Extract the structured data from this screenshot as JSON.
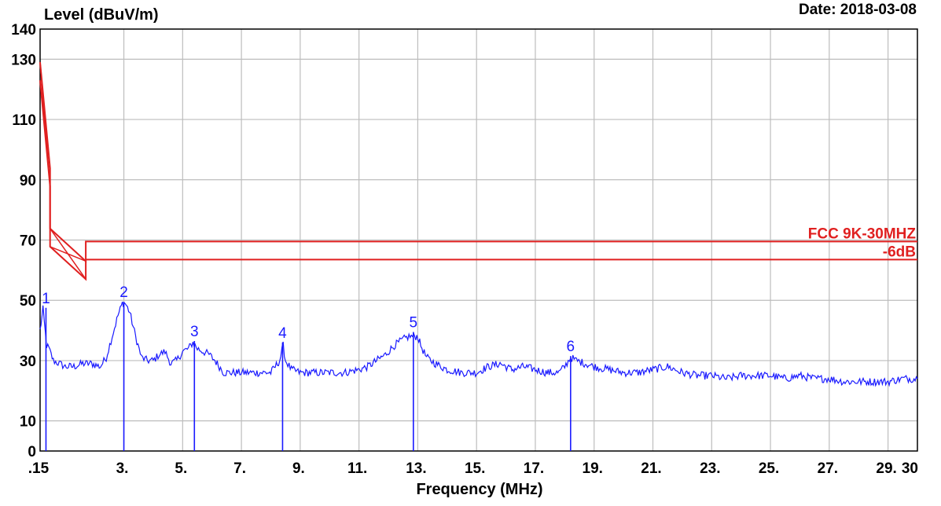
{
  "chart_data": {
    "type": "line",
    "title": "",
    "ylabel": "Level (dBuV/m)",
    "xlabel": "Frequency (MHz)",
    "date_label": "Date: 2018-03-08",
    "xlim": [
      0.15,
      30
    ],
    "ylim": [
      0,
      140
    ],
    "grid": true,
    "x_ticks": [
      {
        "value": 0.15,
        "label": ".15"
      },
      {
        "value": 3,
        "label": "3."
      },
      {
        "value": 5,
        "label": "5."
      },
      {
        "value": 7,
        "label": "7."
      },
      {
        "value": 9,
        "label": "9."
      },
      {
        "value": 11,
        "label": "11."
      },
      {
        "value": 13,
        "label": "13."
      },
      {
        "value": 15,
        "label": "15."
      },
      {
        "value": 17,
        "label": "17."
      },
      {
        "value": 19,
        "label": "19."
      },
      {
        "value": 21,
        "label": "21."
      },
      {
        "value": 23,
        "label": "23."
      },
      {
        "value": 25,
        "label": "25."
      },
      {
        "value": 27,
        "label": "27."
      },
      {
        "value": 29,
        "label": "29."
      },
      {
        "value": 30,
        "label": "30"
      }
    ],
    "y_ticks": [
      {
        "value": 0,
        "label": "0"
      },
      {
        "value": 10,
        "label": "10"
      },
      {
        "value": 30,
        "label": "30"
      },
      {
        "value": 50,
        "label": "50"
      },
      {
        "value": 70,
        "label": "70"
      },
      {
        "value": 90,
        "label": "90"
      },
      {
        "value": 110,
        "label": "110"
      },
      {
        "value": 130,
        "label": "130"
      },
      {
        "value": 140,
        "label": "140"
      }
    ],
    "colors": {
      "limit": "#e02020",
      "trace": "#1a1aff",
      "grid": "#bdbdbd",
      "axis": "#000000"
    },
    "limit_series": [
      {
        "name": "FCC 9K-30MHZ",
        "x": [
          0.15,
          0.49,
          0.49,
          1.705,
          1.705,
          30
        ],
        "y": [
          129,
          93.8,
          73.8,
          63,
          69.5,
          69.5
        ]
      },
      {
        "name": "-6dB",
        "x": [
          0.15,
          0.49,
          0.49,
          1.705,
          1.705,
          30
        ],
        "y": [
          123,
          87.8,
          67.8,
          57,
          63.5,
          63.5
        ]
      }
    ],
    "series": [
      {
        "x": [
          0.15,
          0.25,
          0.37,
          0.45,
          0.6,
          0.8,
          1.0,
          1.3,
          1.6,
          1.9,
          2.2,
          2.4,
          2.6,
          2.8,
          2.95,
          3.05,
          3.2,
          3.4,
          3.6,
          3.8,
          4.0,
          4.2,
          4.4,
          4.6,
          4.8,
          5.0,
          5.2,
          5.35,
          5.5,
          5.7,
          5.9,
          6.1,
          6.4,
          6.8,
          7.2,
          7.6,
          8.0,
          8.3,
          8.42,
          8.5,
          8.7,
          9.0,
          9.5,
          10.0,
          10.5,
          11.0,
          11.3,
          11.6,
          11.9,
          12.2,
          12.5,
          12.7,
          12.9,
          13.0,
          13.1,
          13.3,
          13.6,
          14.0,
          14.5,
          15.0,
          15.4,
          15.8,
          16.2,
          16.6,
          17.0,
          17.4,
          17.8,
          18.0,
          18.2,
          18.4,
          18.7,
          19.0,
          19.5,
          20.0,
          20.5,
          21.0,
          21.5,
          22.0,
          22.5,
          23.0,
          23.5,
          24.0,
          24.5,
          25.0,
          25.5,
          26.0,
          26.5,
          27.0,
          27.5,
          28.0,
          28.5,
          29.0,
          29.5,
          30.0
        ],
        "y": [
          40,
          47,
          35,
          34,
          30,
          29,
          28,
          28,
          29,
          29,
          28,
          31,
          38,
          45,
          49,
          49,
          46,
          38,
          31,
          30,
          30,
          32,
          33,
          29,
          30,
          33,
          34,
          36,
          34,
          33,
          32,
          30,
          26,
          26,
          26,
          26,
          26,
          30,
          35,
          30,
          27,
          26,
          26,
          26,
          26,
          27,
          28,
          30,
          32,
          35,
          37,
          38,
          38,
          38,
          35,
          31,
          29,
          27,
          26,
          26,
          28,
          29,
          27,
          28,
          27,
          26,
          26,
          28,
          31,
          30,
          29,
          28,
          27,
          26,
          26,
          27,
          28,
          26,
          25,
          25,
          24,
          25,
          25,
          25,
          24,
          25,
          24,
          24,
          23,
          23,
          23,
          23,
          24,
          24
        ]
      }
    ],
    "markers": [
      {
        "label": "1",
        "x": 0.35,
        "y": 47.5
      },
      {
        "label": "2",
        "x": 3.0,
        "y": 49.5
      },
      {
        "label": "3",
        "x": 5.4,
        "y": 36.5
      },
      {
        "label": "4",
        "x": 8.4,
        "y": 36.0
      },
      {
        "label": "5",
        "x": 12.85,
        "y": 39.5
      },
      {
        "label": "6",
        "x": 18.2,
        "y": 31.5
      }
    ],
    "annotations": [
      {
        "text": "FCC 9K-30MHZ",
        "x": 30,
        "y": 69.5
      },
      {
        "text": "-6dB",
        "x": 30,
        "y": 63.5
      }
    ]
  }
}
